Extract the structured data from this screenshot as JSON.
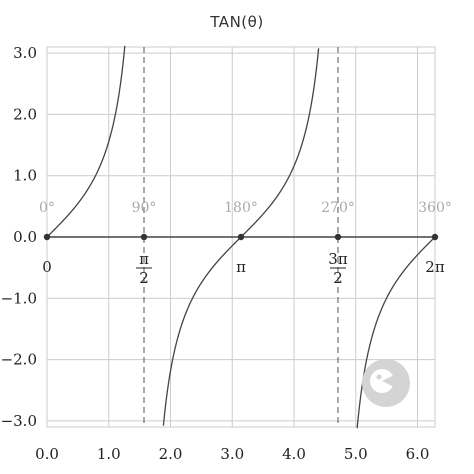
{
  "chart_data": {
    "type": "line",
    "title": "TAN(θ)",
    "function": "tan",
    "xlim": [
      0,
      6.2832
    ],
    "ylim": [
      -3.1,
      3.1
    ],
    "x_ticks": [
      0,
      1,
      2,
      3,
      4,
      5,
      6
    ],
    "x_tick_labels": [
      "0.0",
      "1.0",
      "2.0",
      "3.0",
      "4.0",
      "5.0",
      "6.0"
    ],
    "y_ticks": [
      3,
      2,
      1,
      0,
      -1,
      -2,
      -3
    ],
    "y_tick_labels": [
      "3.0",
      "2.0",
      "1.0",
      "0.0",
      "−1.0",
      "−2.0",
      "−3.0"
    ],
    "asymptotes": [
      1.5708,
      4.7124
    ],
    "points": [
      {
        "x": 0,
        "y": 0,
        "degree_label": "0°",
        "radian_label": "0"
      },
      {
        "x": 1.5708,
        "y": 0,
        "degree_label": "90°",
        "radian_num": "π",
        "radian_den": "2"
      },
      {
        "x": 3.1416,
        "y": 0,
        "degree_label": "180°",
        "radian_label": "π"
      },
      {
        "x": 4.7124,
        "y": 0,
        "degree_label": "270°",
        "radian_num": "3π",
        "radian_den": "2"
      },
      {
        "x": 6.2832,
        "y": 0,
        "degree_label": "360°",
        "radian_label": "2π"
      }
    ],
    "grid": true,
    "line_color": "#444444",
    "grid_color": "#cccccc"
  },
  "watermark_icon": "pacman-face-icon"
}
